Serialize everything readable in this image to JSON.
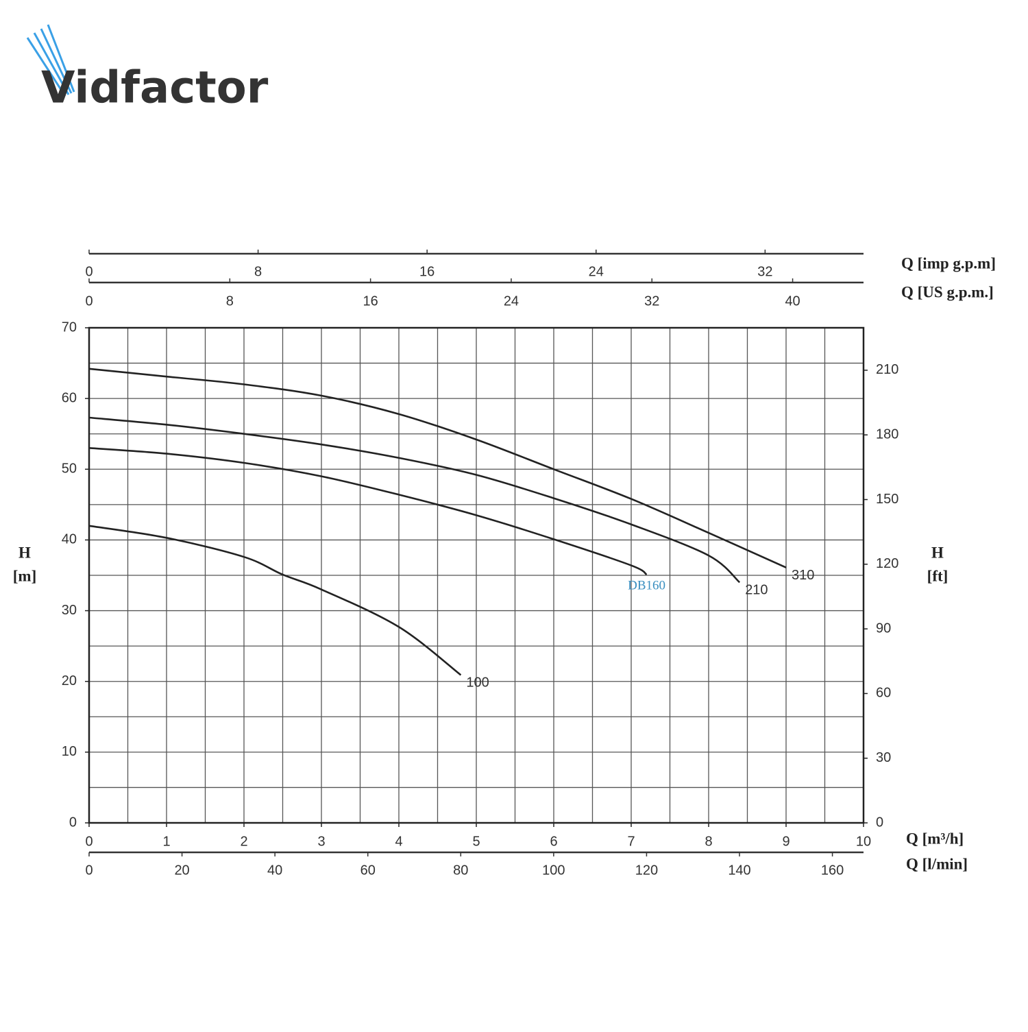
{
  "logo": "Vidfactor",
  "chart_data": {
    "type": "line",
    "x_label": "Q [m³/h]",
    "xlim": [
      0,
      10
    ],
    "xticks": [
      0,
      1,
      2,
      3,
      4,
      5,
      6,
      7,
      8,
      9,
      10
    ],
    "ylim": [
      0,
      70
    ],
    "yticks": [
      0,
      10,
      20,
      30,
      40,
      50,
      60,
      70
    ],
    "y_label": [
      "H",
      "[m]"
    ],
    "y2lim": [
      0,
      229.7
    ],
    "y2ticks": [
      0,
      30,
      60,
      90,
      120,
      150,
      180,
      210
    ],
    "y2_label": [
      "H",
      "[ft]"
    ],
    "secondary_x_axes": [
      {
        "label": "Q [l/min]",
        "position": "bottom",
        "lim": [
          0,
          166.7
        ],
        "ticks": [
          0,
          20,
          40,
          60,
          80,
          100,
          120,
          140,
          160
        ]
      },
      {
        "label": "Q [US g.p.m.]",
        "position": "top",
        "lim": [
          0,
          44.03
        ],
        "ticks": [
          0,
          8,
          16,
          24,
          32,
          40
        ]
      },
      {
        "label": "Q [imp g.p.m]",
        "position": "top",
        "lim": [
          0,
          36.66
        ],
        "ticks": [
          0,
          8,
          16,
          24,
          32
        ]
      }
    ],
    "xgrid": [
      0,
      0.5,
      1,
      1.5,
      2,
      2.5,
      3,
      3.5,
      4,
      4.5,
      5,
      5.5,
      6,
      6.5,
      7,
      7.5,
      8,
      8.5,
      9,
      9.5,
      10
    ],
    "ygrid": [
      0,
      5,
      10,
      15,
      20,
      25,
      30,
      35,
      40,
      45,
      50,
      55,
      60,
      65,
      70
    ],
    "grid_color": "#555555",
    "series": [
      {
        "name": "310",
        "color": "#222222",
        "label_color": "#333333",
        "x": [
          0,
          1,
          2,
          3,
          4,
          5,
          6,
          7,
          8,
          9
        ],
        "values": [
          64.2,
          63.1,
          62.0,
          60.4,
          57.8,
          54.2,
          50.0,
          45.8,
          41.0,
          36.1
        ]
      },
      {
        "name": "210",
        "color": "#222222",
        "label_color": "#333333",
        "x": [
          0,
          1,
          2,
          3,
          4,
          5,
          6,
          7,
          8,
          8.4
        ],
        "values": [
          57.3,
          56.3,
          55.0,
          53.5,
          51.6,
          49.2,
          45.9,
          42.2,
          37.8,
          34.0
        ]
      },
      {
        "name": "DB160",
        "color": "#222222",
        "label_color": "#3a8fc0",
        "x": [
          0,
          1,
          2,
          3,
          4,
          5,
          6,
          7,
          7.2
        ],
        "values": [
          53.0,
          52.2,
          50.9,
          49.0,
          46.4,
          43.5,
          40.1,
          36.4,
          35.1
        ]
      },
      {
        "name": "100",
        "color": "#222222",
        "label_color": "#333333",
        "x": [
          0,
          1,
          2,
          2.5,
          3,
          4,
          4.8
        ],
        "values": [
          42.0,
          40.3,
          37.6,
          35.1,
          33.0,
          27.7,
          20.9
        ]
      }
    ]
  }
}
